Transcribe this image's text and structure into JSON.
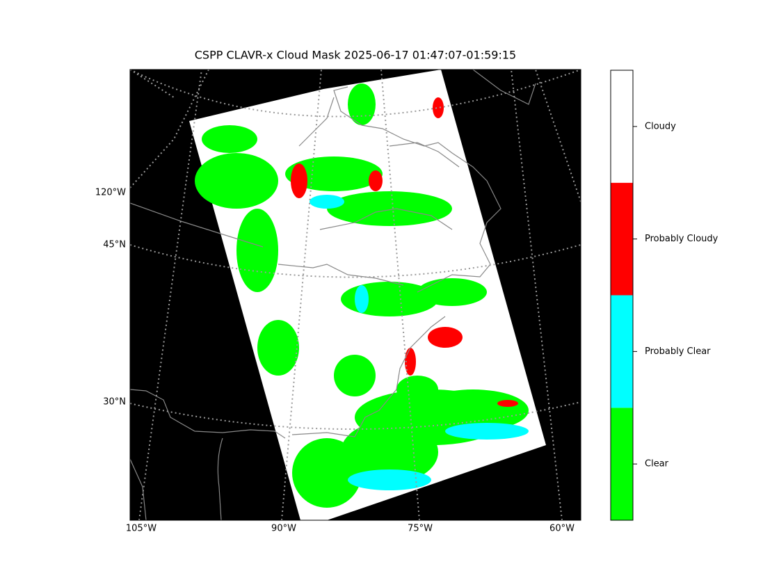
{
  "title": "CSPP CLAVR-x Cloud Mask 2025-06-17 01:47:07-01:59:15",
  "map": {
    "lon_labels": [
      "105°W",
      "90°W",
      "75°W",
      "60°W"
    ],
    "lat_labels": [
      "120°W",
      "45°N",
      "30°N"
    ],
    "background": "#000000",
    "swath_color": "#ffffff"
  },
  "colorbar": {
    "categories": [
      {
        "label": "Clear",
        "color": "#00ff00"
      },
      {
        "label": "Probably Clear",
        "color": "#00ffff"
      },
      {
        "label": "Probably Cloudy",
        "color": "#ff0000"
      },
      {
        "label": "Cloudy",
        "color": "#ffffff"
      }
    ]
  }
}
